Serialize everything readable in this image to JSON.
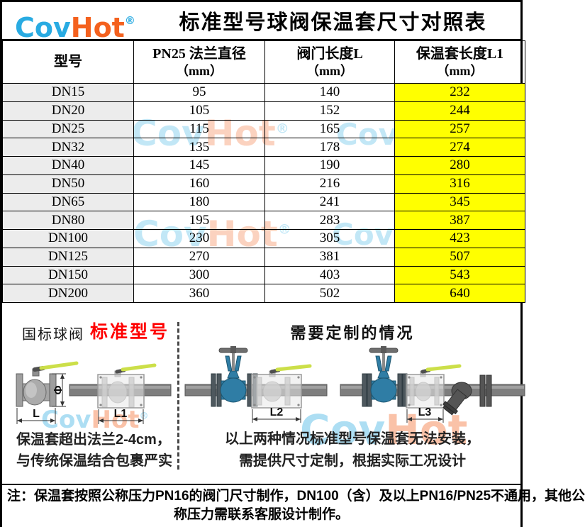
{
  "header": {
    "logo_cov": "Cov",
    "logo_hot": "Hot",
    "logo_reg": "®",
    "title": "标准型号球阀保温套尺寸对照表"
  },
  "table": {
    "columns": [
      {
        "label": "型号",
        "sub": ""
      },
      {
        "label": "PN25 法兰直径",
        "sub": "（mm）"
      },
      {
        "label": "阀门长度L",
        "sub": "（mm）"
      },
      {
        "label": "保温套长度L1",
        "sub": "（mm）"
      }
    ],
    "rows": [
      {
        "model": "DN15",
        "flange": "95",
        "length": "140",
        "cover": "232"
      },
      {
        "model": "DN20",
        "flange": "105",
        "length": "152",
        "cover": "244"
      },
      {
        "model": "DN25",
        "flange": "115",
        "length": "165",
        "cover": "257"
      },
      {
        "model": "DN32",
        "flange": "135",
        "length": "178",
        "cover": "274"
      },
      {
        "model": "DN40",
        "flange": "145",
        "length": "190",
        "cover": "280"
      },
      {
        "model": "DN50",
        "flange": "160",
        "length": "216",
        "cover": "316"
      },
      {
        "model": "DN65",
        "flange": "180",
        "length": "241",
        "cover": "345"
      },
      {
        "model": "DN80",
        "flange": "195",
        "length": "283",
        "cover": "387"
      },
      {
        "model": "DN100",
        "flange": "230",
        "length": "305",
        "cover": "423"
      },
      {
        "model": "DN125",
        "flange": "270",
        "length": "381",
        "cover": "507"
      },
      {
        "model": "DN150",
        "flange": "300",
        "length": "403",
        "cover": "543"
      },
      {
        "model": "DN200",
        "flange": "360",
        "length": "502",
        "cover": "640"
      }
    ],
    "highlight_color": "#FFFF00",
    "model_col_color": "#ECECEC"
  },
  "diagram": {
    "left": {
      "label_black": "国标球阀",
      "label_red": "标准型号",
      "dim_phi": "Φ",
      "dim_l": "L",
      "dim_l1": "L1",
      "caption_line1": "保温套超出法兰2-4cm，",
      "caption_line2": "与传统保温结合包裹严实"
    },
    "right": {
      "title": "需要定制的情况",
      "dim_l2": "L2",
      "dim_l3": "L3",
      "caption_line1": "以上两种情况标准型号保温套无法安装，",
      "caption_line2": "需提供尺寸定制，根据实际工况设计"
    }
  },
  "note": {
    "line1": "注：保温套按照公称压力PN16的阀门尺寸制作，DN100（含）及以上PN16/PN25不通用，其他公",
    "line2": "称压力需联系客服设计制作。"
  },
  "watermark": {
    "cov": "Cov",
    "hot": "Hot",
    "reg": "®"
  },
  "colors": {
    "logo_blue": "#29ABE2",
    "logo_orange": "#F4611E",
    "highlight_yellow": "#FFFF00",
    "red_label": "#FF0000",
    "valve_blue": "#2F7DA5",
    "handle_yellow": "#CCDF49"
  }
}
